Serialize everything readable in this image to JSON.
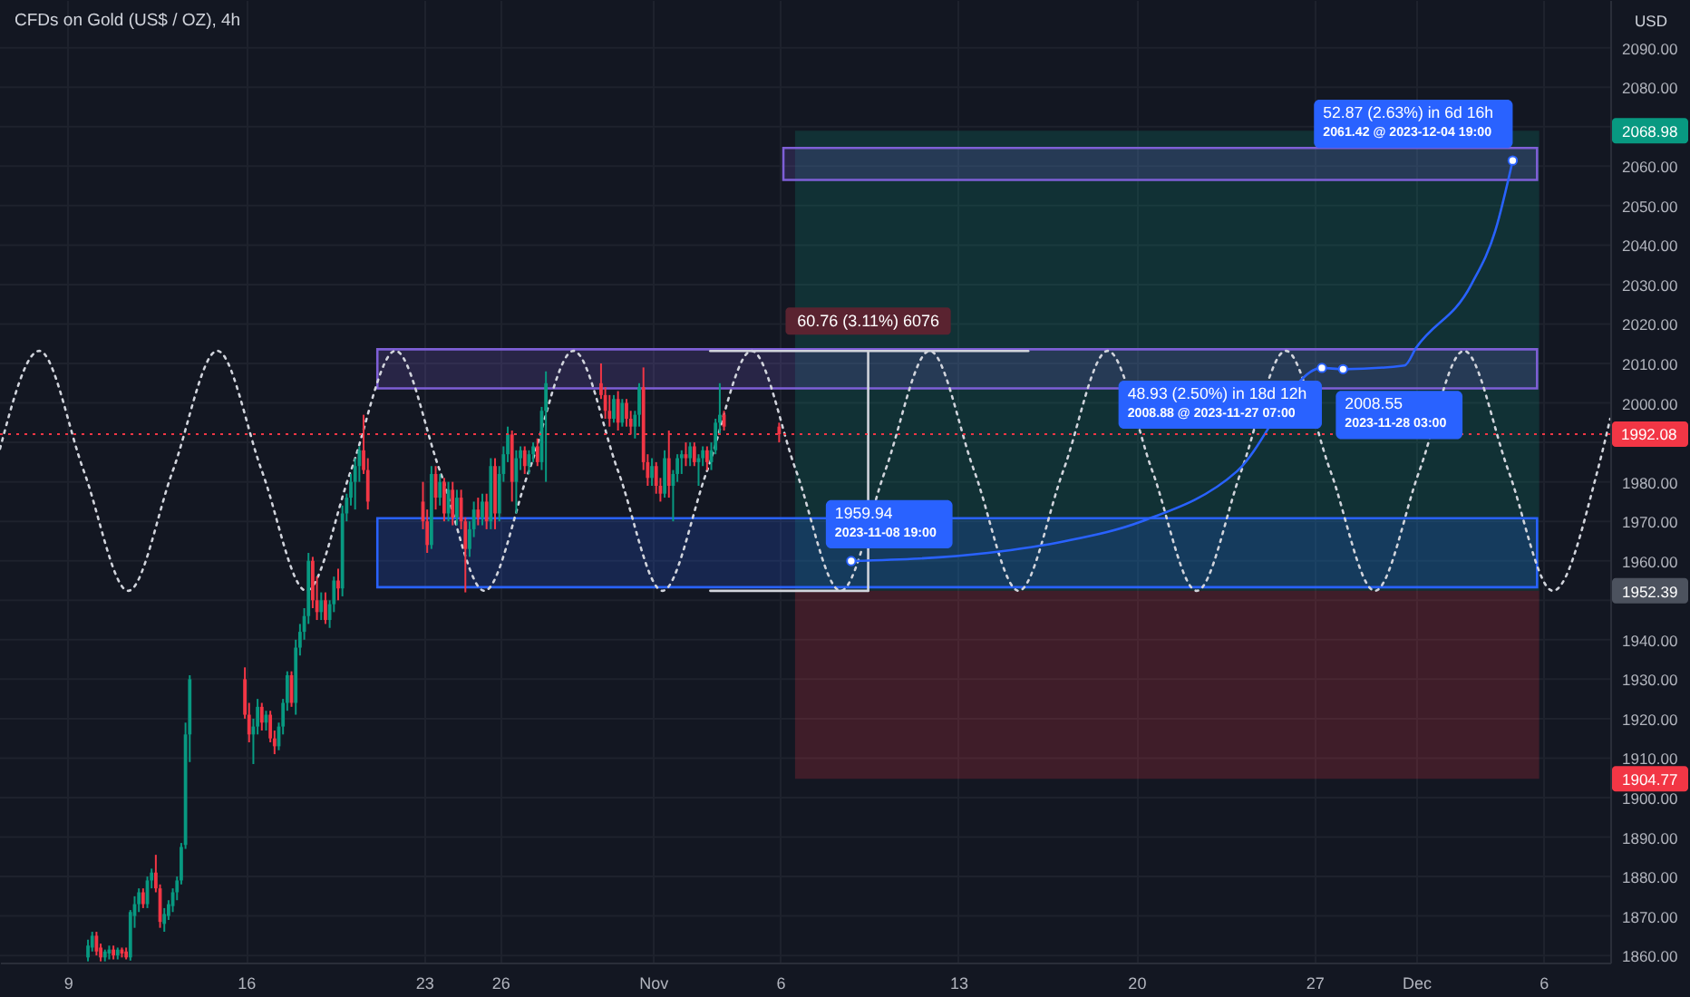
{
  "chart_data": {
    "type": "candlestick",
    "title": "CFDs on Gold (US$ / OZ), 4h",
    "ylabel": "USD",
    "x": [
      "2023-10-09T19:00",
      "2023-10-09T23:00",
      "2023-10-10T03:00",
      "2023-10-10T07:00",
      "2023-10-10T11:00",
      "2023-10-10T15:00",
      "2023-10-10T19:00",
      "2023-10-10T23:00",
      "2023-10-11T03:00",
      "2023-10-11T07:00",
      "2023-10-11T11:00",
      "2023-10-11T15:00",
      "2023-10-11T19:00",
      "2023-10-11T23:00",
      "2023-10-12T03:00",
      "2023-10-12T07:00",
      "2023-10-12T11:00",
      "2023-10-12T15:00",
      "2023-10-12T19:00",
      "2023-10-12T23:00",
      "2023-10-13T03:00",
      "2023-10-13T07:00",
      "2023-10-13T11:00",
      "2023-10-13T15:00",
      "2023-10-13T19:00",
      "2023-10-15T23:00",
      "2023-10-16T03:00",
      "2023-10-16T07:00",
      "2023-10-16T11:00",
      "2023-10-16T15:00",
      "2023-10-16T19:00",
      "2023-10-16T23:00",
      "2023-10-17T03:00",
      "2023-10-17T07:00",
      "2023-10-17T11:00",
      "2023-10-17T15:00",
      "2023-10-17T19:00",
      "2023-10-17T23:00",
      "2023-10-18T03:00",
      "2023-10-18T07:00",
      "2023-10-18T11:00",
      "2023-10-18T15:00",
      "2023-10-18T19:00",
      "2023-10-18T23:00",
      "2023-10-19T03:00",
      "2023-10-19T07:00",
      "2023-10-19T11:00",
      "2023-10-19T15:00",
      "2023-10-19T19:00",
      "2023-10-19T23:00",
      "2023-10-20T03:00",
      "2023-10-20T07:00",
      "2023-10-20T11:00",
      "2023-10-20T15:00",
      "2023-10-20T19:00",
      "2023-10-22T23:00",
      "2023-10-23T03:00",
      "2023-10-23T07:00",
      "2023-10-23T11:00",
      "2023-10-23T15:00",
      "2023-10-23T19:00",
      "2023-10-23T23:00",
      "2023-10-24T03:00",
      "2023-10-24T07:00",
      "2023-10-24T11:00",
      "2023-10-24T15:00",
      "2023-10-24T19:00",
      "2023-10-24T23:00",
      "2023-10-25T03:00",
      "2023-10-25T07:00",
      "2023-10-25T11:00",
      "2023-10-25T15:00",
      "2023-10-25T19:00",
      "2023-10-25T23:00",
      "2023-10-26T03:00",
      "2023-10-26T07:00",
      "2023-10-26T11:00",
      "2023-10-26T15:00",
      "2023-10-26T19:00",
      "2023-10-26T23:00",
      "2023-10-27T03:00",
      "2023-10-27T07:00",
      "2023-10-27T11:00",
      "2023-10-27T15:00",
      "2023-10-27T19:00",
      "2023-10-29T23:00",
      "2023-10-30T03:00",
      "2023-10-30T07:00",
      "2023-10-30T11:00",
      "2023-10-30T15:00",
      "2023-10-30T19:00",
      "2023-10-30T23:00",
      "2023-10-31T03:00",
      "2023-10-31T07:00",
      "2023-10-31T11:00",
      "2023-10-31T15:00",
      "2023-10-31T19:00",
      "2023-10-31T23:00",
      "2023-11-01T03:00",
      "2023-11-01T07:00",
      "2023-11-01T11:00",
      "2023-11-01T15:00",
      "2023-11-01T19:00",
      "2023-11-01T23:00",
      "2023-11-02T03:00",
      "2023-11-02T07:00",
      "2023-11-02T11:00",
      "2023-11-02T15:00",
      "2023-11-02T19:00",
      "2023-11-02T23:00",
      "2023-11-03T03:00",
      "2023-11-03T07:00",
      "2023-11-03T11:00",
      "2023-11-03T15:00",
      "2023-11-03T19:00",
      "2023-11-05T23:00"
    ],
    "ohlc": [
      [
        1859.5,
        1864,
        1858.5,
        1862.5
      ],
      [
        1862,
        1866,
        1861,
        1865
      ],
      [
        1865,
        1866,
        1860,
        1861
      ],
      [
        1862,
        1863,
        1858.5,
        1859.5
      ],
      [
        1859.5,
        1861.5,
        1858.5,
        1861
      ],
      [
        1860.5,
        1862.5,
        1859,
        1861.5
      ],
      [
        1861.5,
        1862.5,
        1859,
        1860
      ],
      [
        1860,
        1862,
        1859,
        1861.5
      ],
      [
        1861.5,
        1862,
        1859.5,
        1860.5
      ],
      [
        1861,
        1862,
        1859,
        1859.5
      ],
      [
        1859.5,
        1871.5,
        1858.7,
        1871
      ],
      [
        1870,
        1875,
        1867,
        1873
      ],
      [
        1873,
        1877,
        1871,
        1876
      ],
      [
        1876,
        1877,
        1872,
        1873
      ],
      [
        1873,
        1880,
        1872,
        1879
      ],
      [
        1879,
        1882,
        1877,
        1881
      ],
      [
        1881,
        1885.5,
        1876,
        1877
      ],
      [
        1877,
        1878,
        1867,
        1868.5
      ],
      [
        1868,
        1872,
        1866,
        1870.5
      ],
      [
        1870,
        1874,
        1869,
        1873
      ],
      [
        1872.5,
        1877,
        1871,
        1876
      ],
      [
        1876,
        1880,
        1874,
        1879
      ],
      [
        1879,
        1888.5,
        1878,
        1887.5
      ],
      [
        1888,
        1919,
        1887,
        1916
      ],
      [
        1916,
        1931,
        1909,
        1930
      ],
      [
        1930,
        1933,
        1920,
        1921
      ],
      [
        1921,
        1924,
        1914,
        1916
      ],
      [
        1916,
        1920,
        1908.5,
        1918
      ],
      [
        1918,
        1925,
        1916,
        1923
      ],
      [
        1923,
        1924,
        1917,
        1919
      ],
      [
        1919,
        1922,
        1917,
        1921
      ],
      [
        1921,
        1922,
        1914,
        1915
      ],
      [
        1915,
        1917,
        1911,
        1913
      ],
      [
        1913,
        1919,
        1912,
        1918
      ],
      [
        1918,
        1925,
        1916,
        1924
      ],
      [
        1924,
        1932,
        1922,
        1931
      ],
      [
        1931,
        1932,
        1923,
        1924
      ],
      [
        1924,
        1940,
        1921,
        1938
      ],
      [
        1938,
        1944,
        1936,
        1942
      ],
      [
        1942,
        1948,
        1940,
        1946
      ],
      [
        1946,
        1962,
        1944,
        1960
      ],
      [
        1960,
        1961,
        1948,
        1950
      ],
      [
        1950,
        1956,
        1945,
        1947
      ],
      [
        1947,
        1952,
        1945,
        1950
      ],
      [
        1950,
        1952,
        1944,
        1945
      ],
      [
        1945,
        1950,
        1943,
        1949
      ],
      [
        1949,
        1956,
        1947,
        1955
      ],
      [
        1955,
        1958,
        1950,
        1953
      ],
      [
        1953,
        1974,
        1951,
        1972
      ],
      [
        1972,
        1977,
        1970,
        1976
      ],
      [
        1976,
        1982,
        1974,
        1980
      ],
      [
        1980,
        1986,
        1973,
        1984
      ],
      [
        1984,
        1989,
        1980,
        1988
      ],
      [
        1988,
        1997,
        1982,
        1983
      ],
      [
        1983,
        1986,
        1973,
        1975
      ],
      [
        1975,
        1980,
        1968,
        1970
      ],
      [
        1970,
        1973,
        1962,
        1964
      ],
      [
        1964,
        1984,
        1963,
        1982
      ],
      [
        1982,
        1984,
        1973,
        1976
      ],
      [
        1976,
        1982,
        1974,
        1980
      ],
      [
        1980,
        1981,
        1970,
        1972
      ],
      [
        1972,
        1980,
        1970,
        1978
      ],
      [
        1978,
        1980,
        1969,
        1971
      ],
      [
        1971,
        1978,
        1969,
        1976
      ],
      [
        1976,
        1978,
        1968,
        1970
      ],
      [
        1970,
        1971,
        1952,
        1963
      ],
      [
        1963,
        1970,
        1961,
        1968
      ],
      [
        1968,
        1975,
        1966,
        1973
      ],
      [
        1973,
        1976,
        1969,
        1971
      ],
      [
        1971,
        1977,
        1969,
        1975
      ],
      [
        1975,
        1977,
        1968,
        1970
      ],
      [
        1970,
        1986,
        1968,
        1984
      ],
      [
        1984,
        1986,
        1968,
        1972
      ],
      [
        1972,
        1984,
        1970,
        1982
      ],
      [
        1982,
        1989,
        1980,
        1987
      ],
      [
        1987,
        1994,
        1985,
        1992
      ],
      [
        1992,
        1993,
        1975,
        1980
      ],
      [
        1980,
        1988,
        1972,
        1986
      ],
      [
        1986,
        1989,
        1983,
        1988
      ],
      [
        1988,
        1989,
        1982,
        1984
      ],
      [
        1984,
        1988,
        1982,
        1987
      ],
      [
        1987,
        1990,
        1985,
        1989
      ],
      [
        1989,
        1991,
        1984,
        1985
      ],
      [
        1985,
        1999,
        1983,
        1998
      ],
      [
        1998,
        2008,
        1980,
        2005
      ],
      [
        2005,
        2010,
        2001,
        2002
      ],
      [
        2002,
        2004,
        1996,
        1998
      ],
      [
        1998,
        2002,
        1994,
        1996
      ],
      [
        1996,
        2002,
        1995,
        2001
      ],
      [
        2001,
        2003,
        1993,
        1995
      ],
      [
        1995,
        2001,
        1994,
        2000
      ],
      [
        2000,
        2001,
        1994,
        1996
      ],
      [
        1996,
        1998,
        1992,
        1994
      ],
      [
        1994,
        1998,
        1991,
        1997
      ],
      [
        1997,
        2005,
        1994,
        2004
      ],
      [
        2004,
        2009,
        1983,
        1985
      ],
      [
        1985,
        1987,
        1979,
        1981
      ],
      [
        1981,
        1986,
        1979,
        1984
      ],
      [
        1984,
        1985,
        1977,
        1979
      ],
      [
        1979,
        1981,
        1975,
        1977
      ],
      [
        1977,
        1988,
        1976,
        1986
      ],
      [
        1986,
        1993,
        1976,
        1979
      ],
      [
        1979,
        1983,
        1970,
        1982
      ],
      [
        1982,
        1987,
        1980,
        1986
      ],
      [
        1986,
        1988,
        1982,
        1987
      ],
      [
        1987,
        1990,
        1984,
        1986
      ],
      [
        1986,
        1990,
        1984,
        1989
      ],
      [
        1989,
        1990,
        1984,
        1985
      ],
      [
        1985,
        1987,
        1979,
        1986
      ],
      [
        1986,
        1989,
        1984,
        1988
      ],
      [
        1988,
        1989,
        1983,
        1985
      ],
      [
        1985,
        1990,
        1983,
        1988
      ],
      [
        1988,
        1996,
        1987,
        1995
      ],
      [
        1995,
        2005,
        1992,
        1997
      ],
      [
        1997,
        1998,
        1993,
        1994
      ],
      [
        1994,
        1995,
        1990,
        1992.08
      ]
    ],
    "colors": [
      "#089981",
      "#089981",
      "#f23645",
      "#f23645",
      "#089981",
      "#089981",
      "#f23645",
      "#089981",
      "#f23645",
      "#f23645",
      "#089981",
      "#089981",
      "#089981",
      "#f23645",
      "#089981",
      "#089981",
      "#f23645",
      "#f23645",
      "#089981",
      "#089981",
      "#089981",
      "#089981",
      "#089981",
      "#089981",
      "#089981",
      "#f23645",
      "#f23645",
      "#089981",
      "#089981",
      "#f23645",
      "#089981",
      "#f23645",
      "#f23645",
      "#089981",
      "#089981",
      "#089981",
      "#f23645",
      "#089981",
      "#089981",
      "#089981",
      "#089981",
      "#f23645",
      "#f23645",
      "#089981",
      "#f23645",
      "#089981",
      "#089981",
      "#f23645",
      "#089981",
      "#089981",
      "#089981",
      "#089981",
      "#089981",
      "#f23645",
      "#f23645",
      "#f23645",
      "#f23645",
      "#089981",
      "#f23645",
      "#089981",
      "#f23645",
      "#089981",
      "#f23645",
      "#089981",
      "#f23645",
      "#f23645",
      "#089981",
      "#089981",
      "#f23645",
      "#089981",
      "#f23645",
      "#089981",
      "#f23645",
      "#089981",
      "#089981",
      "#089981",
      "#f23645",
      "#089981",
      "#089981",
      "#f23645",
      "#089981",
      "#089981",
      "#f23645",
      "#089981",
      "#089981",
      "#f23645",
      "#f23645",
      "#f23645",
      "#089981",
      "#f23645",
      "#089981",
      "#f23645",
      "#f23645",
      "#089981",
      "#089981",
      "#f23645",
      "#f23645",
      "#089981",
      "#f23645",
      "#f23645",
      "#089981",
      "#f23645",
      "#089981",
      "#089981",
      "#089981",
      "#f23645",
      "#089981",
      "#f23645",
      "#089981",
      "#089981",
      "#f23645",
      "#089981",
      "#089981",
      "#089981",
      "#f23645",
      "#f23645"
    ],
    "xlim": [
      "2023-10-06T08:00",
      "2023-12-08T15:00"
    ],
    "ylim": [
      1858.2,
      2102.1
    ],
    "xticks": [
      {
        "value": "2023-10-09",
        "label": "9"
      },
      {
        "value": "2023-10-16",
        "label": "16"
      },
      {
        "value": "2023-10-23",
        "label": "23"
      },
      {
        "value": "2023-10-26",
        "label": "26"
      },
      {
        "value": "2023-11-01",
        "label": "Nov"
      },
      {
        "value": "2023-11-06",
        "label": "6"
      },
      {
        "value": "2023-11-13",
        "label": "13"
      },
      {
        "value": "2023-11-20",
        "label": "20"
      },
      {
        "value": "2023-11-27",
        "label": "27"
      },
      {
        "value": "2023-12-01",
        "label": "Dec"
      },
      {
        "value": "2023-12-06",
        "label": "6"
      }
    ],
    "yticks": [
      {
        "value": 1860,
        "label": "1860.00"
      },
      {
        "value": 1870,
        "label": "1870.00"
      },
      {
        "value": 1880,
        "label": "1880.00"
      },
      {
        "value": 1890,
        "label": "1890.00"
      },
      {
        "value": 1900,
        "label": "1900.00"
      },
      1904.77,
      {
        "value": 1910,
        "label": "1910.00"
      },
      {
        "value": 1920,
        "label": "1920.00"
      },
      {
        "value": 1930,
        "label": "1930.00"
      },
      {
        "value": 1940,
        "label": "1940.00"
      },
      {
        "value": 1950,
        "label": null
      },
      1952.39,
      {
        "value": 1960,
        "label": "1960.00"
      },
      {
        "value": 1970,
        "label": "1970.00"
      },
      {
        "value": 1980,
        "label": "1980.00"
      },
      {
        "value": 1990,
        "label": null
      },
      {
        "value": 2000,
        "label": "2000.00"
      },
      {
        "value": 2010,
        "label": "2010.00"
      },
      {
        "value": 2020,
        "label": "2020.00"
      },
      {
        "value": 2030,
        "label": "2030.00"
      },
      {
        "value": 2040,
        "label": "2040.00"
      },
      {
        "value": 2050,
        "label": "2050.00"
      },
      {
        "value": 2060,
        "label": "2060.00"
      },
      2068.98,
      {
        "value": 2070,
        "label": null
      },
      {
        "value": 2080,
        "label": "2080.00"
      },
      {
        "value": 2090,
        "label": "2090.00"
      }
    ],
    "grid": true,
    "series": [
      {
        "type": "area",
        "x": [
          "2023-11-06T14:00",
          "2023-12-05T20:00"
        ],
        "values": [
          null,
          null
        ],
        "upper": [
          2068.98,
          2068.98
        ],
        "lower": [
          1952.39,
          1952.39
        ],
        "color": "#089981"
      },
      {
        "type": "area",
        "x": [
          "2023-11-06T14:00",
          "2023-12-05T20:00"
        ],
        "values": [
          null,
          null
        ],
        "upper": [
          1952.39,
          1952.39
        ],
        "lower": [
          1904.77,
          1904.77
        ],
        "color": "#f23645"
      },
      {
        "type": "area",
        "x": [
          "2023-10-21T04:00",
          "2023-12-05T18:00"
        ],
        "values": [
          null,
          null
        ],
        "upper": [
          2013.6,
          2013.6
        ],
        "lower": [
          2003.7,
          2003.7
        ],
        "color": "#7e5fd6",
        "line_style": "solid"
      },
      {
        "type": "area",
        "x": [
          "2023-10-21T04:00",
          "2023-12-05T18:00"
        ],
        "values": [
          null,
          null
        ],
        "upper": [
          1970.8,
          1970.8
        ],
        "lower": [
          1953.3,
          1953.3
        ],
        "color": "#2962ff",
        "line_style": "solid"
      },
      {
        "type": "area",
        "x": [
          "2023-11-06T03:00",
          "2023-12-05T18:00"
        ],
        "values": [
          null,
          null
        ],
        "upper": [
          2064.6,
          2064.6
        ],
        "lower": [
          2056.5,
          2056.5
        ],
        "color": "#7e5fd6",
        "line_style": "solid"
      },
      {
        "type": "line",
        "x": [
          "2023-10-06T08:00",
          "2023-10-07T21:00",
          "2023-10-09T15:00",
          "2023-10-11T09:00",
          "2023-10-13T03:00",
          "2023-10-14T21:00",
          "2023-10-16T15:00",
          "2023-10-18T09:00",
          "2023-10-20T03:00",
          "2023-10-21T21:00",
          "2023-10-23T15:00",
          "2023-10-25T09:00",
          "2023-10-27T03:00",
          "2023-10-28T21:00",
          "2023-10-30T15:00",
          "2023-11-01T09:00",
          "2023-11-03T03:00",
          "2023-11-04T21:00",
          "2023-11-06T15:00",
          "2023-11-08T09:00",
          "2023-11-10T03:00",
          "2023-11-11T21:00",
          "2023-11-13T15:00",
          "2023-11-15T09:00",
          "2023-11-17T03:00",
          "2023-11-18T21:00",
          "2023-11-20T15:00",
          "2023-11-22T09:00",
          "2023-11-24T03:00",
          "2023-11-25T21:00",
          "2023-11-27T15:00",
          "2023-11-29T09:00",
          "2023-12-01T03:00",
          "2023-12-02T21:00",
          "2023-12-04T15:00",
          "2023-12-06T09:00",
          "2023-12-08T03:00",
          "2023-12-08T15:00"
        ],
        "values": [
          1988.4,
          2013.2,
          1982.8,
          1952.4,
          1982.8,
          2013.2,
          1982.8,
          1952.4,
          1982.8,
          2013.2,
          1982.8,
          1952.4,
          1982.8,
          2013.2,
          1982.8,
          1952.4,
          1982.8,
          2013.2,
          1982.8,
          1952.4,
          1982.8,
          2013.2,
          1982.8,
          1952.4,
          1982.8,
          2013.2,
          1982.8,
          1952.4,
          1982.8,
          2013.2,
          1982.8,
          1952.4,
          1982.8,
          2013.2,
          1982.8,
          1952.4,
          1982.8,
          1996
        ],
        "color": "#d1d4dc",
        "line_style": "dotted"
      },
      {
        "type": "line",
        "x": [
          "2023-11-03T06:00",
          "2023-11-15T18:00"
        ],
        "values": [
          2013.15,
          2013.15
        ],
        "color": "#d1d4dc"
      },
      {
        "type": "line",
        "x": [
          "2023-11-03T06:00",
          "2023-11-09T11:00"
        ],
        "values": [
          1952.39,
          1952.39
        ],
        "color": "#d1d4dc"
      },
      {
        "type": "line",
        "x": [
          "2023-11-09T11:00",
          "2023-11-09T11:00"
        ],
        "values": [
          1952.39,
          2013.15
        ],
        "color": "#d1d4dc"
      },
      {
        "type": "line",
        "x": [
          "2023-11-08T19:00",
          "2023-11-14T04:00",
          "2023-11-17T05:00",
          "2023-11-20T05:00",
          "2023-11-23T23:00",
          "2023-11-27T07:00",
          "2023-11-28T03:00",
          "2023-11-30T13:00",
          "2023-12-01T00:00",
          "2023-12-03T04:00",
          "2023-12-04T03:00",
          "2023-12-04T19:00"
        ],
        "values": [
          1959.94,
          1962,
          1965,
          1970,
          1982.7,
          2008.88,
          2008.55,
          2009.5,
          2014,
          2030,
          2044,
          2061.42
        ],
        "color": "#2962ff",
        "value_labels": [
          "1959.94\n2023-11-08 19:00",
          null,
          null,
          null,
          null,
          "48.93 (2.50%) in 18d 12h\n2008.88 @ 2023-11-27 07:00",
          "2008.55\n2023-11-28 03:00",
          null,
          null,
          null,
          null,
          "52.87 (2.63%) in 6d 16h\n2061.42 @ 2023-12-04 19:00"
        ]
      }
    ],
    "ref_lines": [
      {
        "axis": "y",
        "value": 1992.08,
        "label": "1992.08",
        "color": "#f23645",
        "line_style": "dotted"
      }
    ],
    "annotations": [
      {
        "text": "60.76 (3.11%) 6076",
        "x": "2023-11-09T11:00",
        "y": 2013.15
      }
    ]
  }
}
